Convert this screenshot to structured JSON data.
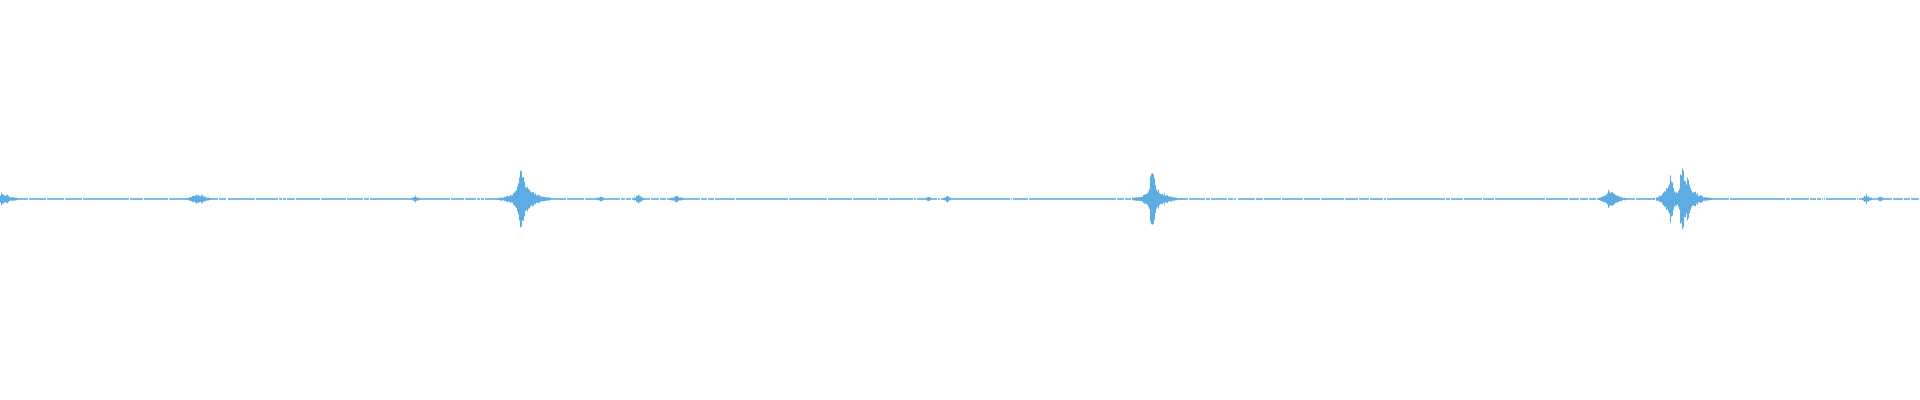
{
  "waveform": {
    "type": "audio-waveform",
    "color": "#5dade2",
    "background": "#ffffff"
  }
}
